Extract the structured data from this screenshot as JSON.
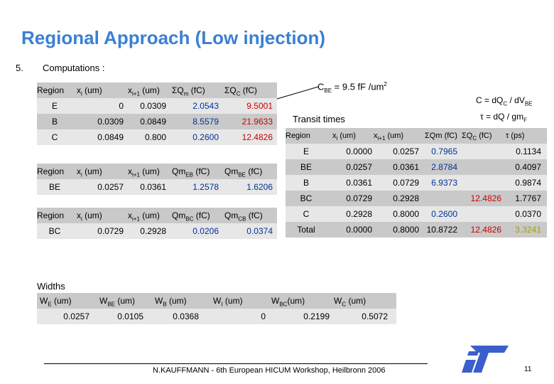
{
  "title": "Regional Approach (Low injection)",
  "section_number": "5.",
  "section_title": "Computations :",
  "cbe_label": "C",
  "cbe_sub": "BE",
  "cbe_value": " = 9.5 fF /um",
  "cbe_sup": "2",
  "c_formula_pre": "C = dQ",
  "c_formula_sub1": "C",
  "c_formula_mid": " / dV",
  "c_formula_sub2": "BE",
  "tau_formula_pre": "τ = dQ / gm",
  "tau_formula_sub": "F",
  "transit_label": "Transit times",
  "widths_label": "Widths",
  "table1": {
    "headers": [
      "Region",
      "x",
      "x",
      "ΣQ",
      "ΣQ"
    ],
    "header_subs": [
      "",
      "i",
      "i+1",
      "m",
      "C"
    ],
    "header_tails": [
      "",
      " (um)",
      " (um)",
      " (fC)",
      " (fC)"
    ],
    "rows": [
      [
        "E",
        "0",
        "0.0309",
        "2.0543",
        "9.5001"
      ],
      [
        "B",
        "0.0309",
        "0.0849",
        "8.5579",
        "21.9633"
      ],
      [
        "C",
        "0.0849",
        "0.800",
        "0.2600",
        "12.4826"
      ]
    ]
  },
  "table2": {
    "headers": [
      "Region",
      "x",
      "x",
      "Qm",
      "Qm"
    ],
    "header_subs": [
      "",
      "i",
      "i+1",
      "EB",
      "BE"
    ],
    "header_tails": [
      "",
      " (um)",
      " (um)",
      " (fC)",
      " (fC)"
    ],
    "rows": [
      [
        "BE",
        "0.0257",
        "0.0361",
        "1.2578",
        "1.6206"
      ]
    ]
  },
  "table3": {
    "headers": [
      "Region",
      "x",
      "x",
      "Qm",
      "Qm"
    ],
    "header_subs": [
      "",
      "i",
      "i+1",
      "BC",
      "CB"
    ],
    "header_tails": [
      "",
      " (um)",
      " (um)",
      " (fC)",
      " (fC)"
    ],
    "rows": [
      [
        "BC",
        "0.0729",
        "0.2928",
        "0.0206",
        "0.0374"
      ]
    ]
  },
  "table4": {
    "headers": [
      "Region",
      "x",
      "x",
      "ΣQm",
      "ΣQ",
      "τ"
    ],
    "header_subs": [
      "",
      "i",
      "i+1",
      "",
      "C",
      ""
    ],
    "header_tails": [
      "",
      " (um)",
      " (um)",
      " (fC)",
      " (fC)",
      " (ps)"
    ],
    "rows": [
      [
        "E",
        "0.0000",
        "0.0257",
        "0.7965",
        "",
        "0.1134"
      ],
      [
        "BE",
        "0.0257",
        "0.0361",
        "2.8784",
        "",
        "0.4097"
      ],
      [
        "B",
        "0.0361",
        "0.0729",
        "6.9373",
        "",
        "0.9874"
      ],
      [
        "BC",
        "0.0729",
        "0.2928",
        "",
        "12.4826",
        "1.7767"
      ],
      [
        "C",
        "0.2928",
        "0.8000",
        "0.2600",
        "",
        "0.0370"
      ],
      [
        "Total",
        "0.0000",
        "0.8000",
        "10.8722",
        "12.4826",
        "3.3241"
      ]
    ]
  },
  "widths": {
    "labels": [
      "W",
      "W",
      "W",
      "W",
      "W",
      "W"
    ],
    "subs": [
      "E",
      "BE",
      "B",
      "I",
      "BC",
      "C"
    ],
    "tails": [
      " (um)",
      " (um)",
      " (um)",
      " (um)",
      "(um)",
      " (um)"
    ],
    "values": [
      "0.0257",
      "0.0105",
      "0.0368",
      "0",
      "0.2199",
      "0.5072"
    ]
  },
  "footer": "N.KAUFFMANN - 6th European HICUM Workshop, Heilbronn 2006",
  "page_number": "11",
  "logo_icon": "st-logo-icon",
  "colors": {
    "title": "#3a7fd5",
    "panel": "#c9c9c9",
    "row_alt": "#e7e7e7",
    "value_blue": "#003399",
    "value_red": "#cc0000",
    "total_tau": "#a0a000"
  }
}
